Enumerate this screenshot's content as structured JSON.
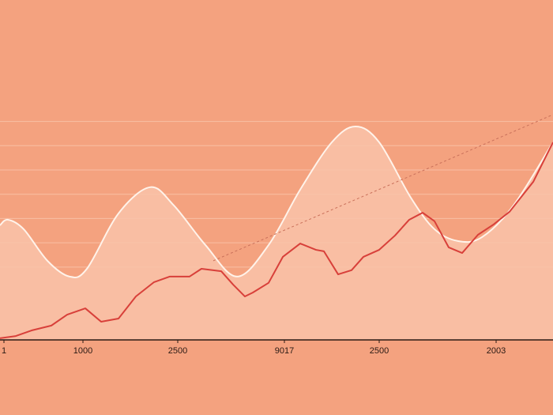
{
  "chart_data": {
    "type": "line",
    "background": "#f4a27f",
    "xlim": [
      0,
      70
    ],
    "ylim": [
      0,
      140
    ],
    "grid": true,
    "show_ytick_labels": false,
    "yticks": [
      30,
      40,
      50,
      60,
      70,
      80,
      90
    ],
    "xticks": [
      {
        "value": 0.5,
        "label": "1"
      },
      {
        "value": 10.5,
        "label": "1000"
      },
      {
        "value": 22.5,
        "label": "2500"
      },
      {
        "value": 36,
        "label": "9017"
      },
      {
        "value": 48,
        "label": "2500"
      },
      {
        "value": 62.8,
        "label": "2003"
      }
    ],
    "series": [
      {
        "color": "#fff3ea",
        "fill": "#f9c3a9",
        "smooth": true,
        "x": [
          0,
          1,
          3,
          6,
          8.8,
          11,
          15,
          19,
          22,
          26,
          30,
          34,
          38,
          42,
          45,
          48,
          52,
          55,
          58,
          61,
          65,
          70
        ],
        "values": [
          47.2,
          49.5,
          45.6,
          32.6,
          26.1,
          29.3,
          52.1,
          62.9,
          55.4,
          39.1,
          26.1,
          39.1,
          61.9,
          81.4,
          87.9,
          81.4,
          58.6,
          45.6,
          40.7,
          42.3,
          55.4,
          81.4
        ]
      },
      {
        "color": "#d8403a",
        "x": [
          0,
          2,
          4,
          6.5,
          8.5,
          10.8,
          12.8,
          15,
          17.2,
          19.5,
          21.5,
          24,
          25.5,
          28,
          29.5,
          31,
          32,
          34,
          35.8,
          38,
          40,
          41,
          42.8,
          44.5,
          46,
          48,
          50,
          51.8,
          53.5,
          55,
          56.8,
          58.5,
          60.5,
          62.5,
          64.5,
          67.5,
          70
        ],
        "values": [
          0.7,
          1.6,
          3.9,
          5.9,
          10.4,
          13.0,
          7.5,
          8.8,
          17.9,
          23.8,
          26.1,
          26.1,
          29.3,
          28.3,
          22.8,
          17.9,
          19.5,
          23.5,
          34.2,
          39.7,
          37.1,
          36.5,
          27.0,
          28.7,
          34.2,
          37.1,
          43.0,
          49.5,
          52.4,
          48.9,
          38.1,
          35.8,
          43.3,
          47.6,
          52.8,
          65.1,
          81.4
        ]
      },
      {
        "color": "#c9705a",
        "dash": true,
        "x": [
          27,
          70
        ],
        "values": [
          32.6,
          92.8
        ]
      }
    ]
  }
}
